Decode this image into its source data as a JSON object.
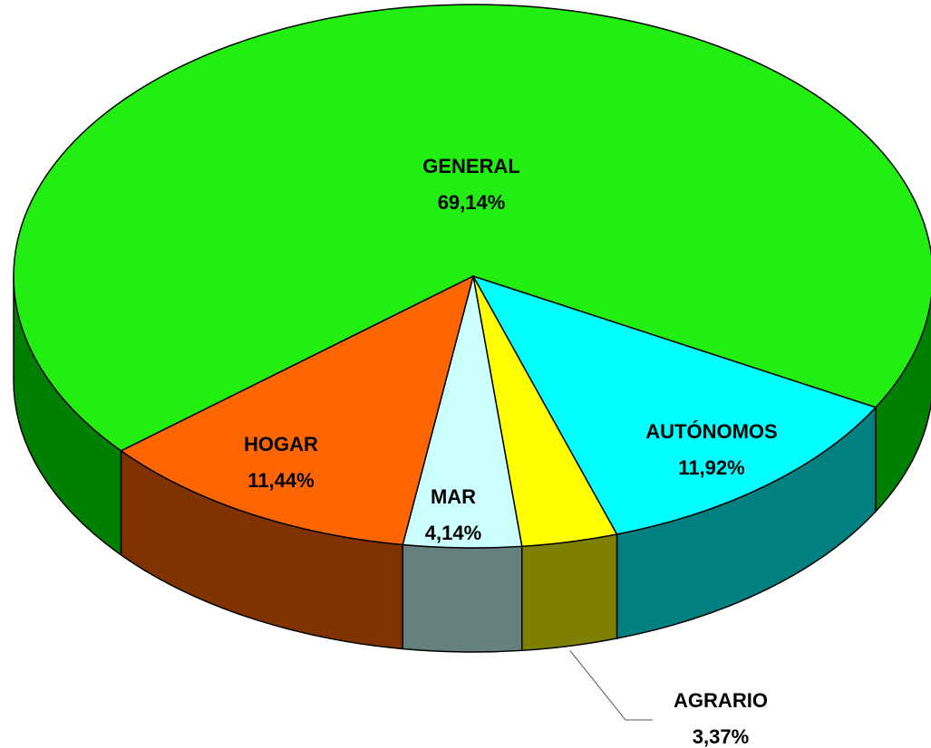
{
  "chart_data": {
    "type": "pie",
    "categories": [
      "GENERAL",
      "AUTÓNOMOS",
      "AGRARIO",
      "MAR",
      "HOGAR"
    ],
    "values": [
      69.14,
      11.92,
      3.37,
      4.14,
      11.44
    ],
    "value_labels": [
      "69,14%",
      "11,92%",
      "3,37%",
      "4,14%",
      "11,44%"
    ],
    "colors": [
      "#22ee11",
      "#00ffff",
      "#ffff00",
      "#ccffff",
      "#ff6600"
    ],
    "side_colors": [
      "#008000",
      "#008080",
      "#808000",
      "#668080",
      "#803300"
    ]
  }
}
